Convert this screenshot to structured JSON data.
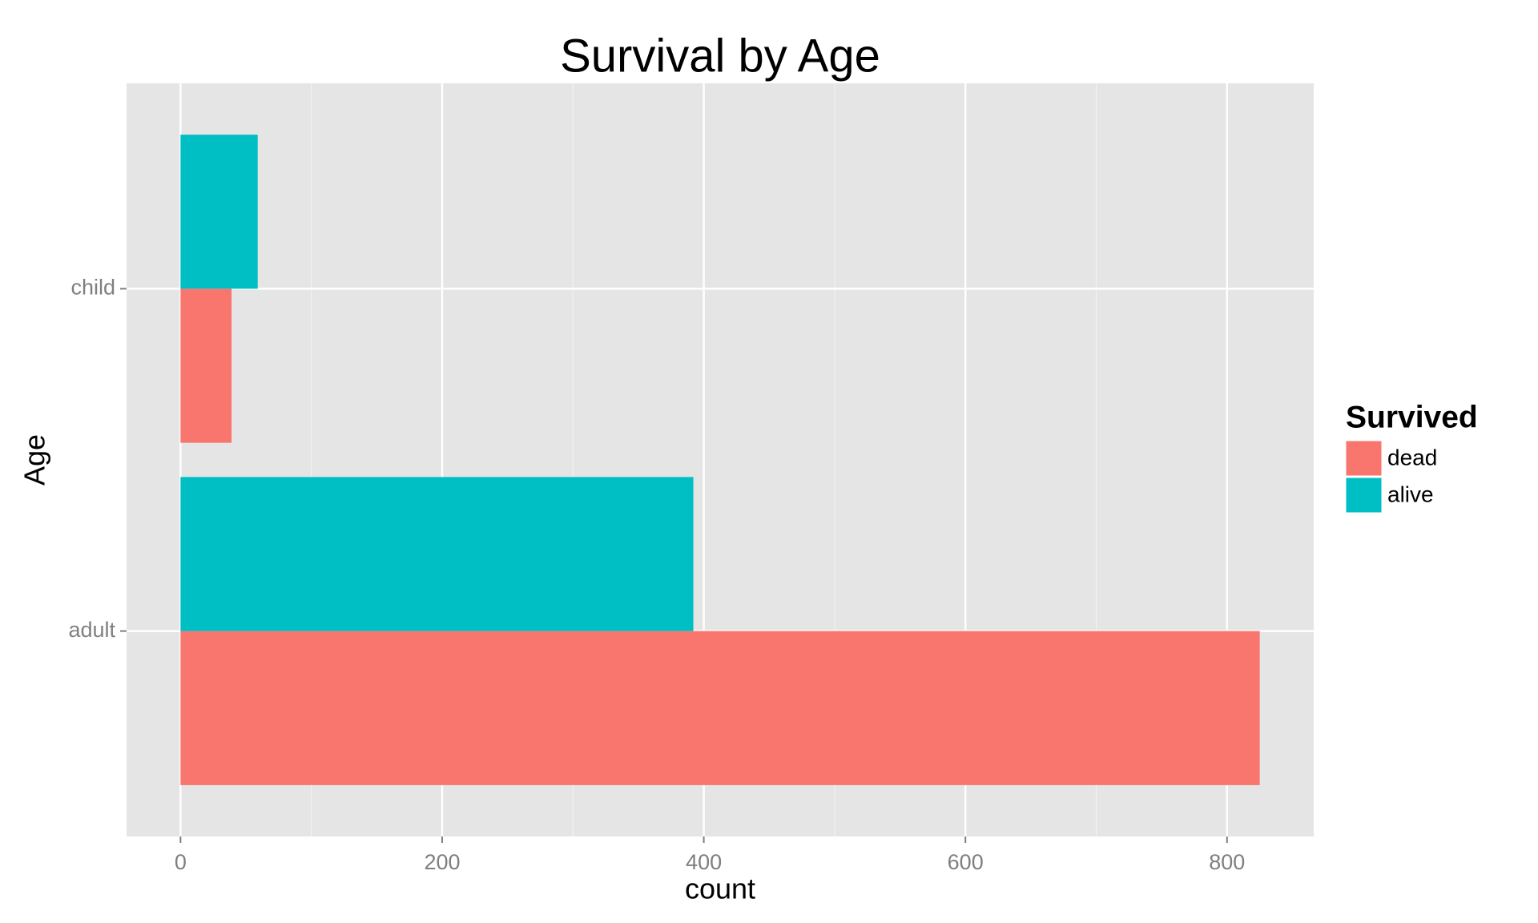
{
  "chart_data": {
    "type": "bar",
    "orientation": "horizontal",
    "title": "Survival by Age",
    "xlabel": "count",
    "ylabel": "Age",
    "categories": [
      "adult",
      "child"
    ],
    "series": [
      {
        "name": "dead",
        "color": "#F8766D",
        "values": [
          825,
          39
        ]
      },
      {
        "name": "alive",
        "color": "#00BFC4",
        "values": [
          392,
          59
        ]
      }
    ],
    "legend_title": "Survived",
    "xlim": [
      -41.25,
      866.25
    ],
    "xticks": [
      0,
      200,
      400,
      600,
      800
    ],
    "xminorticks": [
      100,
      300,
      500,
      700
    ],
    "grid": true
  }
}
